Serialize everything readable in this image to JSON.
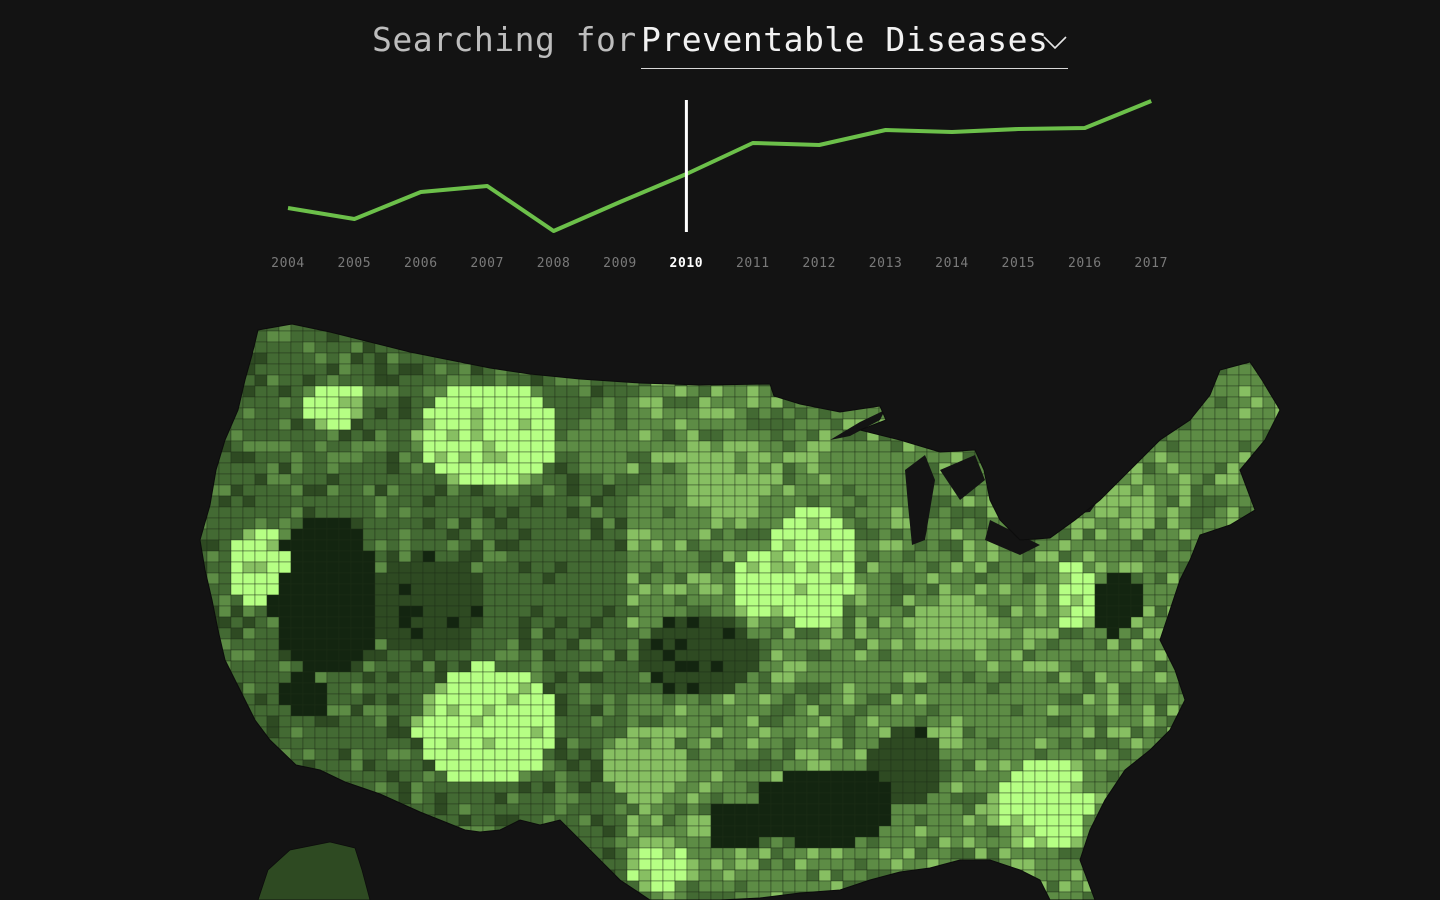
{
  "header": {
    "prefix": "Searching for",
    "topic": "Preventable Diseases"
  },
  "timeline": {
    "selected_year": "2010",
    "years": [
      "2004",
      "2005",
      "2006",
      "2007",
      "2008",
      "2009",
      "2010",
      "2011",
      "2012",
      "2013",
      "2014",
      "2015",
      "2016",
      "2017"
    ],
    "values": [
      0.23,
      0.12,
      0.39,
      0.45,
      0.0,
      0.29,
      0.57,
      0.88,
      0.86,
      1.01,
      0.99,
      1.02,
      1.03,
      1.3
    ],
    "line_color": "#6cc04a",
    "marker_color": "#ffffff"
  },
  "map": {
    "palette": [
      "#132510",
      "#2e4a22",
      "#436a33",
      "#5d8c45",
      "#87bf62",
      "#b6ff84"
    ],
    "background": "#131313"
  }
}
